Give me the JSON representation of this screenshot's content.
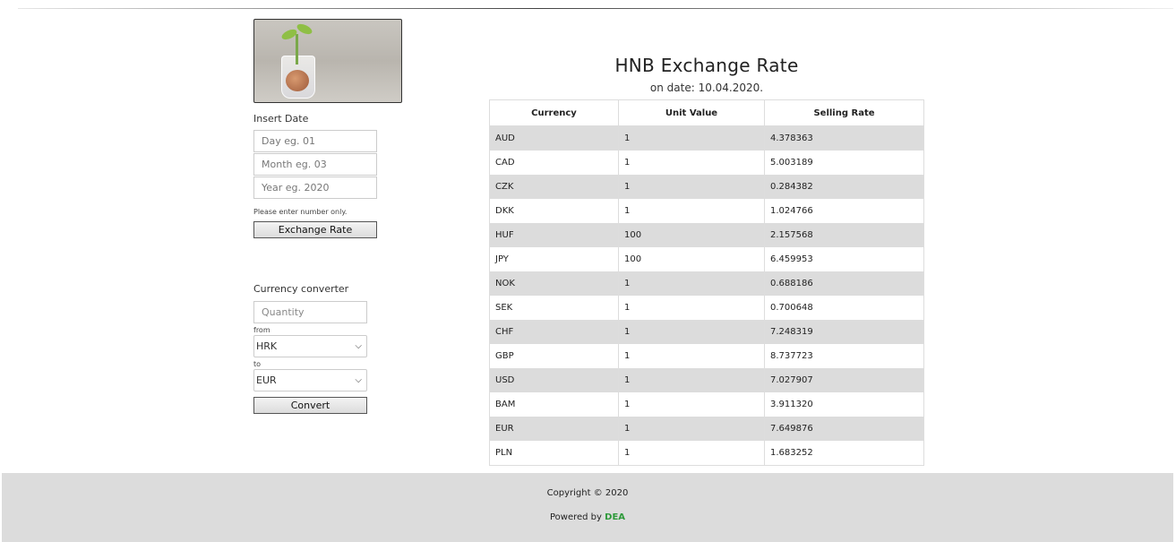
{
  "sidebar": {
    "insert_date_label": "Insert Date",
    "day_placeholder": "Day eg. 01",
    "month_placeholder": "Month eg. 03",
    "year_placeholder": "Year eg. 2020",
    "hint": "Please enter number only.",
    "exchange_button": "Exchange Rate",
    "converter_label": "Currency converter",
    "quantity_placeholder": "Quantity",
    "from_label": "from",
    "from_value": "HRK",
    "to_label": "to",
    "to_value": "EUR",
    "convert_button": "Convert"
  },
  "main": {
    "title": "HNB Exchange Rate",
    "subtitle": "on date: 10.04.2020.",
    "table": {
      "headers": [
        "Currency",
        "Unit Value",
        "Selling Rate"
      ],
      "rows": [
        [
          "AUD",
          "1",
          "4.378363"
        ],
        [
          "CAD",
          "1",
          "5.003189"
        ],
        [
          "CZK",
          "1",
          "0.284382"
        ],
        [
          "DKK",
          "1",
          "1.024766"
        ],
        [
          "HUF",
          "100",
          "2.157568"
        ],
        [
          "JPY",
          "100",
          "6.459953"
        ],
        [
          "NOK",
          "1",
          "0.688186"
        ],
        [
          "SEK",
          "1",
          "0.700648"
        ],
        [
          "CHF",
          "1",
          "7.248319"
        ],
        [
          "GBP",
          "1",
          "8.737723"
        ],
        [
          "USD",
          "1",
          "7.027907"
        ],
        [
          "BAM",
          "1",
          "3.911320"
        ],
        [
          "EUR",
          "1",
          "7.649876"
        ],
        [
          "PLN",
          "1",
          "1.683252"
        ]
      ]
    }
  },
  "footer": {
    "copyright": "Copyright © 2020",
    "powered_prefix": "Powered by",
    "brand": "DEA",
    "brand_color": "#2e9a3a"
  },
  "icons": {
    "select_chevron": "chevron-down-icon",
    "hero_image": "plant-coins-image"
  }
}
